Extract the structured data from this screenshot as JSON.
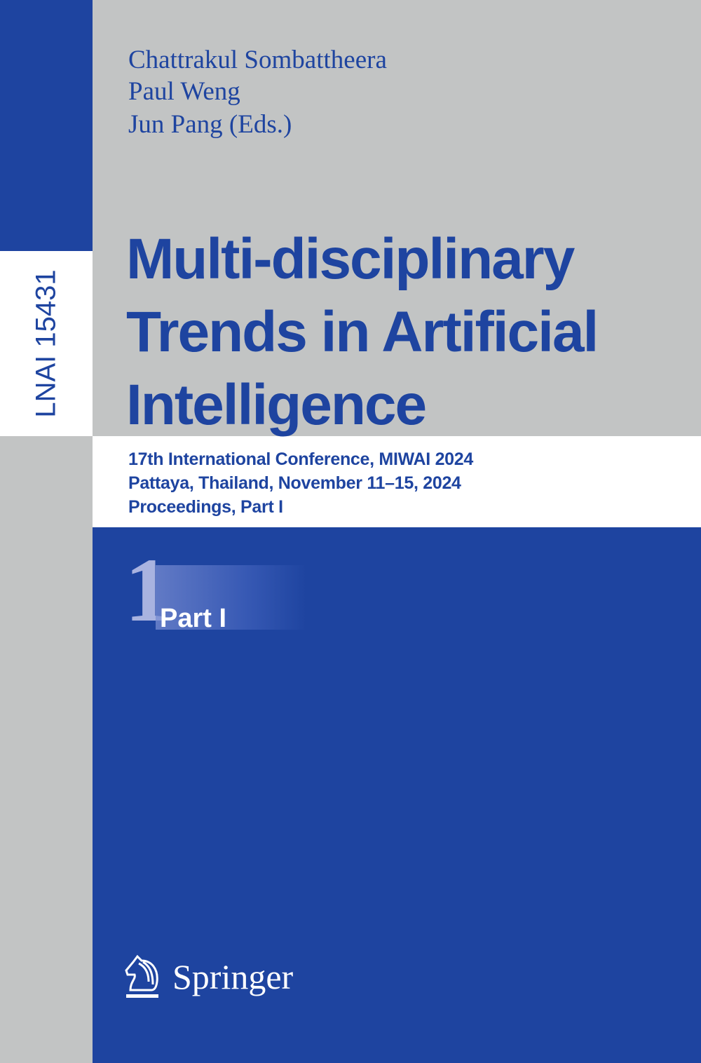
{
  "series_label": "LNAI 15431",
  "authors": [
    "Chattrakul Sombattheera",
    "Paul Weng",
    "Jun Pang (Eds.)"
  ],
  "title_lines": [
    "Multi-disciplinary",
    "Trends in Artificial",
    "Intelligence"
  ],
  "subtitle_lines": [
    "17th International Conference, MIWAI 2024",
    "Pattaya, Thailand, November 11–15, 2024",
    "Proceedings, Part I"
  ],
  "part": {
    "number": "1",
    "label": "Part I"
  },
  "publisher": "Springer",
  "colors": {
    "brand_blue": "#1e44a0",
    "gray": "#c2c4c4",
    "white": "#ffffff"
  }
}
